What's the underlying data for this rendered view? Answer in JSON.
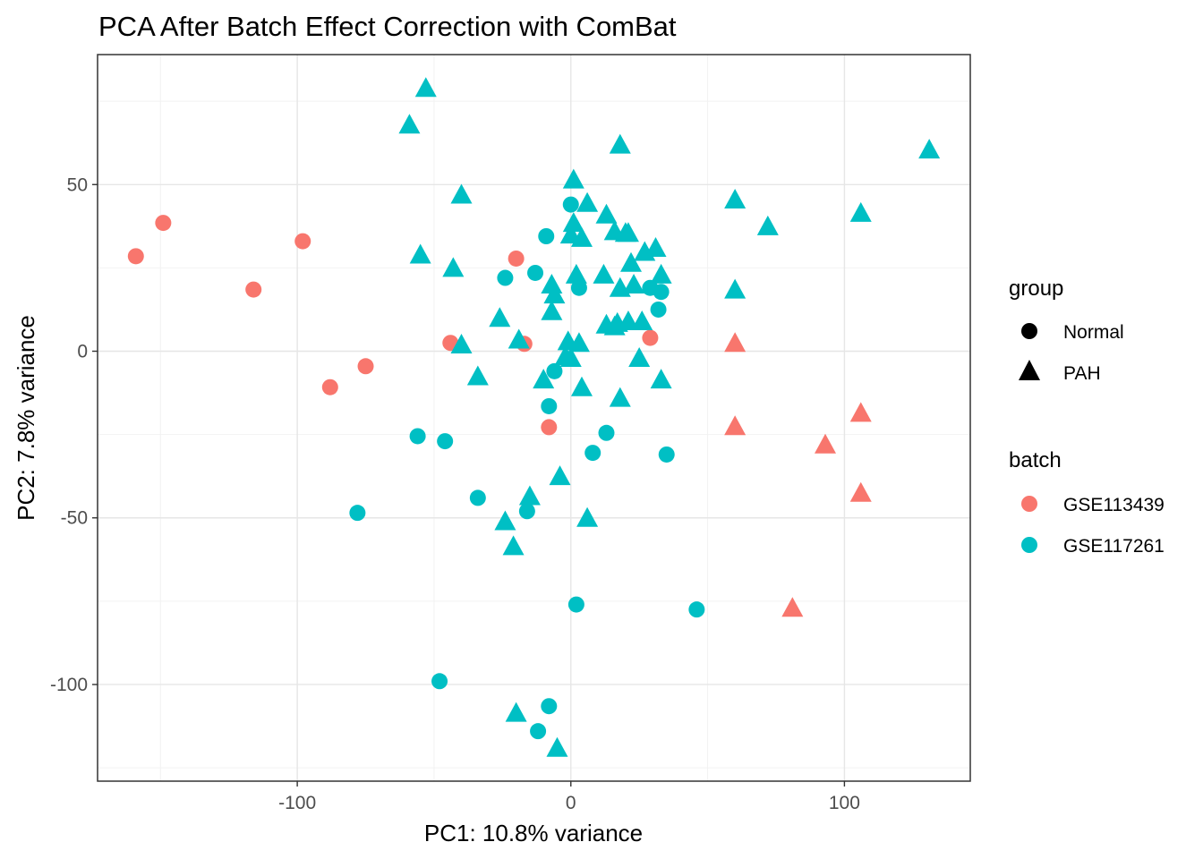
{
  "chart_data": {
    "type": "scatter",
    "title": "PCA After Batch Effect Correction with ComBat",
    "xlabel": "PC1: 10.8% variance",
    "ylabel": "PC2: 7.8% variance",
    "xlim": [
      -173,
      146
    ],
    "ylim": [
      -129,
      89
    ],
    "x_ticks": [
      -100,
      0,
      100
    ],
    "x_tick_labels": [
      "-100",
      "0",
      "100"
    ],
    "y_ticks": [
      -100,
      -50,
      0,
      50
    ],
    "y_tick_labels": [
      "-100",
      "-50",
      "0",
      "50"
    ],
    "grid": true,
    "legend_position": "right",
    "colors": {
      "GSE113439": "#F8766D",
      "GSE117261": "#00BFC4"
    },
    "legends": {
      "group": {
        "title": "group",
        "items": [
          {
            "label": "Normal",
            "shape": "circle"
          },
          {
            "label": "PAH",
            "shape": "triangle"
          }
        ]
      },
      "batch": {
        "title": "batch",
        "items": [
          {
            "label": "GSE113439",
            "color": "#F8766D"
          },
          {
            "label": "GSE117261",
            "color": "#00BFC4"
          }
        ]
      }
    },
    "points": [
      {
        "x": -159,
        "y": 28.5,
        "group": "Normal",
        "batch": "GSE113439"
      },
      {
        "x": -149,
        "y": 38.5,
        "group": "Normal",
        "batch": "GSE113439"
      },
      {
        "x": -116,
        "y": 18.5,
        "group": "Normal",
        "batch": "GSE113439"
      },
      {
        "x": -98,
        "y": 33,
        "group": "Normal",
        "batch": "GSE113439"
      },
      {
        "x": -88,
        "y": -10.8,
        "group": "Normal",
        "batch": "GSE113439"
      },
      {
        "x": -75,
        "y": -4.5,
        "group": "Normal",
        "batch": "GSE113439"
      },
      {
        "x": -44,
        "y": 2.5,
        "group": "Normal",
        "batch": "GSE113439"
      },
      {
        "x": -20,
        "y": 27.8,
        "group": "Normal",
        "batch": "GSE113439"
      },
      {
        "x": -17,
        "y": 2.2,
        "group": "Normal",
        "batch": "GSE113439"
      },
      {
        "x": -8,
        "y": -22.8,
        "group": "Normal",
        "batch": "GSE113439"
      },
      {
        "x": 29,
        "y": 4,
        "group": "Normal",
        "batch": "GSE113439"
      },
      {
        "x": 60,
        "y": 2.5,
        "group": "PAH",
        "batch": "GSE113439"
      },
      {
        "x": 60,
        "y": -22.5,
        "group": "PAH",
        "batch": "GSE113439"
      },
      {
        "x": 93,
        "y": -28,
        "group": "PAH",
        "batch": "GSE113439"
      },
      {
        "x": 106,
        "y": -18.5,
        "group": "PAH",
        "batch": "GSE113439"
      },
      {
        "x": 106,
        "y": -42.5,
        "group": "PAH",
        "batch": "GSE113439"
      },
      {
        "x": 81,
        "y": -77,
        "group": "PAH",
        "batch": "GSE113439"
      },
      {
        "x": -9,
        "y": 34.5,
        "group": "Normal",
        "batch": "GSE117261"
      },
      {
        "x": 0,
        "y": 44,
        "group": "Normal",
        "batch": "GSE117261"
      },
      {
        "x": -24,
        "y": 22,
        "group": "Normal",
        "batch": "GSE117261"
      },
      {
        "x": -13,
        "y": 23.5,
        "group": "Normal",
        "batch": "GSE117261"
      },
      {
        "x": 3,
        "y": 19,
        "group": "Normal",
        "batch": "GSE117261"
      },
      {
        "x": 29,
        "y": 19,
        "group": "Normal",
        "batch": "GSE117261"
      },
      {
        "x": 33,
        "y": 17.8,
        "group": "Normal",
        "batch": "GSE117261"
      },
      {
        "x": 32,
        "y": 12.5,
        "group": "Normal",
        "batch": "GSE117261"
      },
      {
        "x": -6,
        "y": -6,
        "group": "Normal",
        "batch": "GSE117261"
      },
      {
        "x": -8,
        "y": -16.5,
        "group": "Normal",
        "batch": "GSE117261"
      },
      {
        "x": -56,
        "y": -25.5,
        "group": "Normal",
        "batch": "GSE117261"
      },
      {
        "x": -46,
        "y": -27,
        "group": "Normal",
        "batch": "GSE117261"
      },
      {
        "x": -34,
        "y": -44,
        "group": "Normal",
        "batch": "GSE117261"
      },
      {
        "x": -16,
        "y": -48,
        "group": "Normal",
        "batch": "GSE117261"
      },
      {
        "x": -78,
        "y": -48.5,
        "group": "Normal",
        "batch": "GSE117261"
      },
      {
        "x": 8,
        "y": -30.5,
        "group": "Normal",
        "batch": "GSE117261"
      },
      {
        "x": 13,
        "y": -24.5,
        "group": "Normal",
        "batch": "GSE117261"
      },
      {
        "x": 35,
        "y": -31,
        "group": "Normal",
        "batch": "GSE117261"
      },
      {
        "x": 2,
        "y": -76,
        "group": "Normal",
        "batch": "GSE117261"
      },
      {
        "x": 46,
        "y": -77.5,
        "group": "Normal",
        "batch": "GSE117261"
      },
      {
        "x": -48,
        "y": -99,
        "group": "Normal",
        "batch": "GSE117261"
      },
      {
        "x": -8,
        "y": -106.5,
        "group": "Normal",
        "batch": "GSE117261"
      },
      {
        "x": -12,
        "y": -114,
        "group": "Normal",
        "batch": "GSE117261"
      },
      {
        "x": -53,
        "y": 79,
        "group": "PAH",
        "batch": "GSE117261"
      },
      {
        "x": -59,
        "y": 68,
        "group": "PAH",
        "batch": "GSE117261"
      },
      {
        "x": -40,
        "y": 47,
        "group": "PAH",
        "batch": "GSE117261"
      },
      {
        "x": -55,
        "y": 29,
        "group": "PAH",
        "batch": "GSE117261"
      },
      {
        "x": -43,
        "y": 25,
        "group": "PAH",
        "batch": "GSE117261"
      },
      {
        "x": -26,
        "y": 10,
        "group": "PAH",
        "batch": "GSE117261"
      },
      {
        "x": -40,
        "y": 2,
        "group": "PAH",
        "batch": "GSE117261"
      },
      {
        "x": -34,
        "y": -7.5,
        "group": "PAH",
        "batch": "GSE117261"
      },
      {
        "x": -19,
        "y": 3.5,
        "group": "PAH",
        "batch": "GSE117261"
      },
      {
        "x": 18,
        "y": 62,
        "group": "PAH",
        "batch": "GSE117261"
      },
      {
        "x": 1,
        "y": 51.5,
        "group": "PAH",
        "batch": "GSE117261"
      },
      {
        "x": 6,
        "y": 44.5,
        "group": "PAH",
        "batch": "GSE117261"
      },
      {
        "x": 1,
        "y": 38.5,
        "group": "PAH",
        "batch": "GSE117261"
      },
      {
        "x": 0,
        "y": 35,
        "group": "PAH",
        "batch": "GSE117261"
      },
      {
        "x": 4,
        "y": 34,
        "group": "PAH",
        "batch": "GSE117261"
      },
      {
        "x": 13,
        "y": 41,
        "group": "PAH",
        "batch": "GSE117261"
      },
      {
        "x": 16,
        "y": 36,
        "group": "PAH",
        "batch": "GSE117261"
      },
      {
        "x": 20,
        "y": 35.5,
        "group": "PAH",
        "batch": "GSE117261"
      },
      {
        "x": 21,
        "y": 35.5,
        "group": "PAH",
        "batch": "GSE117261"
      },
      {
        "x": 27,
        "y": 29.8,
        "group": "PAH",
        "batch": "GSE117261"
      },
      {
        "x": 31,
        "y": 31,
        "group": "PAH",
        "batch": "GSE117261"
      },
      {
        "x": 22,
        "y": 26.5,
        "group": "PAH",
        "batch": "GSE117261"
      },
      {
        "x": 33,
        "y": 23,
        "group": "PAH",
        "batch": "GSE117261"
      },
      {
        "x": 2,
        "y": 23,
        "group": "PAH",
        "batch": "GSE117261"
      },
      {
        "x": 12,
        "y": 23,
        "group": "PAH",
        "batch": "GSE117261"
      },
      {
        "x": -7,
        "y": 20,
        "group": "PAH",
        "batch": "GSE117261"
      },
      {
        "x": -6,
        "y": 17,
        "group": "PAH",
        "batch": "GSE117261"
      },
      {
        "x": -7,
        "y": 12,
        "group": "PAH",
        "batch": "GSE117261"
      },
      {
        "x": 18,
        "y": 19,
        "group": "PAH",
        "batch": "GSE117261"
      },
      {
        "x": 23,
        "y": 20,
        "group": "PAH",
        "batch": "GSE117261"
      },
      {
        "x": 13,
        "y": 8,
        "group": "PAH",
        "batch": "GSE117261"
      },
      {
        "x": 16,
        "y": 7.5,
        "group": "PAH",
        "batch": "GSE117261"
      },
      {
        "x": 17,
        "y": 8.5,
        "group": "PAH",
        "batch": "GSE117261"
      },
      {
        "x": 21,
        "y": 9,
        "group": "PAH",
        "batch": "GSE117261"
      },
      {
        "x": 26,
        "y": 9,
        "group": "PAH",
        "batch": "GSE117261"
      },
      {
        "x": -1,
        "y": 3,
        "group": "PAH",
        "batch": "GSE117261"
      },
      {
        "x": 3,
        "y": 2.5,
        "group": "PAH",
        "batch": "GSE117261"
      },
      {
        "x": -2,
        "y": -1.5,
        "group": "PAH",
        "batch": "GSE117261"
      },
      {
        "x": 0,
        "y": -2,
        "group": "PAH",
        "batch": "GSE117261"
      },
      {
        "x": -10,
        "y": -8.5,
        "group": "PAH",
        "batch": "GSE117261"
      },
      {
        "x": 25,
        "y": -2,
        "group": "PAH",
        "batch": "GSE117261"
      },
      {
        "x": 33,
        "y": -8.5,
        "group": "PAH",
        "batch": "GSE117261"
      },
      {
        "x": 4,
        "y": -10.8,
        "group": "PAH",
        "batch": "GSE117261"
      },
      {
        "x": 18,
        "y": -14,
        "group": "PAH",
        "batch": "GSE117261"
      },
      {
        "x": -4,
        "y": -37.5,
        "group": "PAH",
        "batch": "GSE117261"
      },
      {
        "x": 6,
        "y": -50,
        "group": "PAH",
        "batch": "GSE117261"
      },
      {
        "x": -15,
        "y": -43.5,
        "group": "PAH",
        "batch": "GSE117261"
      },
      {
        "x": -24,
        "y": -51,
        "group": "PAH",
        "batch": "GSE117261"
      },
      {
        "x": -21,
        "y": -58.5,
        "group": "PAH",
        "batch": "GSE117261"
      },
      {
        "x": 60,
        "y": 45.5,
        "group": "PAH",
        "batch": "GSE117261"
      },
      {
        "x": 72,
        "y": 37.5,
        "group": "PAH",
        "batch": "GSE117261"
      },
      {
        "x": 106,
        "y": 41.5,
        "group": "PAH",
        "batch": "GSE117261"
      },
      {
        "x": 131,
        "y": 60.5,
        "group": "PAH",
        "batch": "GSE117261"
      },
      {
        "x": 60,
        "y": 18.5,
        "group": "PAH",
        "batch": "GSE117261"
      },
      {
        "x": -20,
        "y": -108.5,
        "group": "PAH",
        "batch": "GSE117261"
      },
      {
        "x": -5,
        "y": -119,
        "group": "PAH",
        "batch": "GSE117261"
      }
    ]
  }
}
